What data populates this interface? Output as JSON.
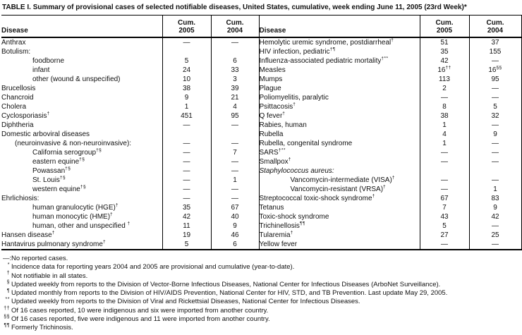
{
  "title": "TABLE I. Summary of provisional cases of selected notifiable diseases, United States, cumulative, week ending June 11, 2005 (23rd Week)*",
  "table": {
    "header": {
      "disease": "Disease",
      "cum": "Cum.",
      "y2005": "2005",
      "y2004": "2004"
    },
    "rows": [
      {
        "left": {
          "name": "Anthrax",
          "indent": 0,
          "v05": "—",
          "v04": "—"
        },
        "right": {
          "name": "Hemolytic uremic syndrome, postdiarrheal",
          "sup": "†",
          "indent": 0,
          "v05": "51",
          "v04": "37"
        }
      },
      {
        "left": {
          "name": "Botulism:",
          "indent": 0,
          "v05": "",
          "v04": ""
        },
        "right": {
          "name": "HIV infection, pediatric",
          "sup": "†¶",
          "indent": 0,
          "v05": "35",
          "v04": "155"
        }
      },
      {
        "left": {
          "name": "foodborne",
          "indent": 2,
          "v05": "5",
          "v04": "6"
        },
        "right": {
          "name": "Influenza-associated pediatric mortality",
          "sup": "†**",
          "indent": 0,
          "v05": "42",
          "v04": "—"
        }
      },
      {
        "left": {
          "name": "infant",
          "indent": 2,
          "v05": "24",
          "v04": "33"
        },
        "right": {
          "name": "Measles",
          "indent": 0,
          "v05": "16",
          "s05": "††",
          "v04": "16",
          "s04": "§§"
        }
      },
      {
        "left": {
          "name": "other (wound & unspecified)",
          "indent": 2,
          "v05": "10",
          "v04": "3"
        },
        "right": {
          "name": "Mumps",
          "indent": 0,
          "v05": "113",
          "v04": "95"
        }
      },
      {
        "left": {
          "name": "Brucellosis",
          "indent": 0,
          "v05": "38",
          "v04": "39"
        },
        "right": {
          "name": "Plague",
          "indent": 0,
          "v05": "2",
          "v04": "—"
        }
      },
      {
        "left": {
          "name": "Chancroid",
          "indent": 0,
          "v05": "9",
          "v04": "21"
        },
        "right": {
          "name": "Poliomyelitis, paralytic",
          "indent": 0,
          "v05": "—",
          "v04": "—"
        }
      },
      {
        "left": {
          "name": "Cholera",
          "indent": 0,
          "v05": "1",
          "v04": "4"
        },
        "right": {
          "name": "Psittacosis",
          "sup": "†",
          "indent": 0,
          "v05": "8",
          "v04": "5"
        }
      },
      {
        "left": {
          "name": "Cyclosporiasis",
          "sup": "†",
          "indent": 0,
          "v05": "451",
          "v04": "95"
        },
        "right": {
          "name": "Q fever",
          "sup": "†",
          "indent": 0,
          "v05": "38",
          "v04": "32"
        }
      },
      {
        "left": {
          "name": "Diphtheria",
          "indent": 0,
          "v05": "—",
          "v04": "—"
        },
        "right": {
          "name": "Rabies, human",
          "indent": 0,
          "v05": "1",
          "v04": "—"
        }
      },
      {
        "left": {
          "name": "Domestic arboviral diseases",
          "indent": 0,
          "v05": "",
          "v04": ""
        },
        "right": {
          "name": "Rubella",
          "indent": 0,
          "v05": "4",
          "v04": "9"
        }
      },
      {
        "left": {
          "name": "(neuroinvasive & non-neuroinvasive):",
          "indent": 1,
          "v05": "—",
          "v04": "—"
        },
        "right": {
          "name": "Rubella, congenital syndrome",
          "indent": 0,
          "v05": "1",
          "v04": "—"
        }
      },
      {
        "left": {
          "name": "California serogroup",
          "sup": "†§",
          "indent": 2,
          "v05": "—",
          "v04": "7"
        },
        "right": {
          "name": "SARS",
          "sup": "†**",
          "indent": 0,
          "v05": "—",
          "v04": "—"
        }
      },
      {
        "left": {
          "name": "eastern equine",
          "sup": "†§",
          "indent": 2,
          "v05": "—",
          "v04": "—"
        },
        "right": {
          "name": "Smallpox",
          "sup": "†",
          "indent": 0,
          "v05": "—",
          "v04": "—"
        }
      },
      {
        "left": {
          "name": "Powassan",
          "sup": "†§",
          "indent": 2,
          "v05": "—",
          "v04": "—"
        },
        "right": {
          "name": "Staphylococcus aureus:",
          "indent": 0,
          "italic": true,
          "v05": "",
          "v04": ""
        }
      },
      {
        "left": {
          "name": "St. Louis",
          "sup": "†§",
          "indent": 2,
          "v05": "—",
          "v04": "1"
        },
        "right": {
          "name": "Vancomycin-intermediate (VISA)",
          "sup": "†",
          "indent": 2,
          "v05": "—",
          "v04": "—"
        }
      },
      {
        "left": {
          "name": "western equine",
          "sup": "†§",
          "indent": 2,
          "v05": "—",
          "v04": "—"
        },
        "right": {
          "name": "Vancomycin-resistant (VRSA)",
          "sup": "†",
          "indent": 2,
          "v05": "—",
          "v04": "1"
        }
      },
      {
        "left": {
          "name": "Ehrlichiosis:",
          "indent": 0,
          "v05": "—",
          "v04": "—"
        },
        "right": {
          "name": "Streptococcal toxic-shock syndrome",
          "sup": "†",
          "indent": 0,
          "v05": "67",
          "v04": "83"
        }
      },
      {
        "left": {
          "name": "human granulocytic (HGE)",
          "sup": "†",
          "indent": 2,
          "v05": "35",
          "v04": "67"
        },
        "right": {
          "name": "Tetanus",
          "indent": 0,
          "v05": "7",
          "v04": "9"
        }
      },
      {
        "left": {
          "name": "human monocytic (HME)",
          "sup": "†",
          "indent": 2,
          "v05": "42",
          "v04": "40"
        },
        "right": {
          "name": "Toxic-shock syndrome",
          "indent": 0,
          "v05": "43",
          "v04": "42"
        }
      },
      {
        "left": {
          "name": "human, other and unspecified ",
          "sup": "†",
          "indent": 2,
          "v05": "11",
          "v04": "9"
        },
        "right": {
          "name": "Trichinellosis",
          "sup": "¶¶",
          "indent": 0,
          "v05": "5",
          "v04": "—"
        }
      },
      {
        "left": {
          "name": "Hansen disease",
          "sup": "†",
          "indent": 0,
          "v05": "19",
          "v04": "46"
        },
        "right": {
          "name": "Tularemia",
          "sup": "†",
          "indent": 0,
          "v05": "27",
          "v04": "25"
        }
      },
      {
        "left": {
          "name": "Hantavirus pulmonary syndrome",
          "sup": "†",
          "indent": 0,
          "v05": "5",
          "v04": "6"
        },
        "right": {
          "name": "Yellow fever",
          "indent": 0,
          "v05": "—",
          "v04": "—"
        }
      }
    ]
  },
  "footnotes": [
    {
      "marker": "—:",
      "sup": false,
      "text": "No reported cases."
    },
    {
      "marker": "*",
      "sup": true,
      "text": "Incidence data for reporting years 2004 and 2005 are provisional and cumulative (year-to-date)."
    },
    {
      "marker": "†",
      "sup": true,
      "text": "Not notifiable in all states."
    },
    {
      "marker": "§",
      "sup": true,
      "text": "Updated weekly from reports to the Division of Vector-Borne Infectious Diseases, National Center for Infectious Diseases (ArboNet Surveillance)."
    },
    {
      "marker": "¶",
      "sup": true,
      "text": "Updated monthly from reports to the Division of HIV/AIDS Prevention, National Center for HIV, STD, and TB Prevention. Last update May 29, 2005."
    },
    {
      "marker": "**",
      "sup": true,
      "text": "Updated weekly from reports to the Division of Viral and Rickettsial Diseases, National Center for Infectious Diseases."
    },
    {
      "marker": "††",
      "sup": true,
      "text": "Of 16 cases reported, 10 were indigenous and six were imported from another country."
    },
    {
      "marker": "§§",
      "sup": true,
      "text": "Of 16 cases reported, five were indigenous and 11 were imported from another country."
    },
    {
      "marker": "¶¶",
      "sup": true,
      "text": "Formerly Trichinosis."
    }
  ]
}
